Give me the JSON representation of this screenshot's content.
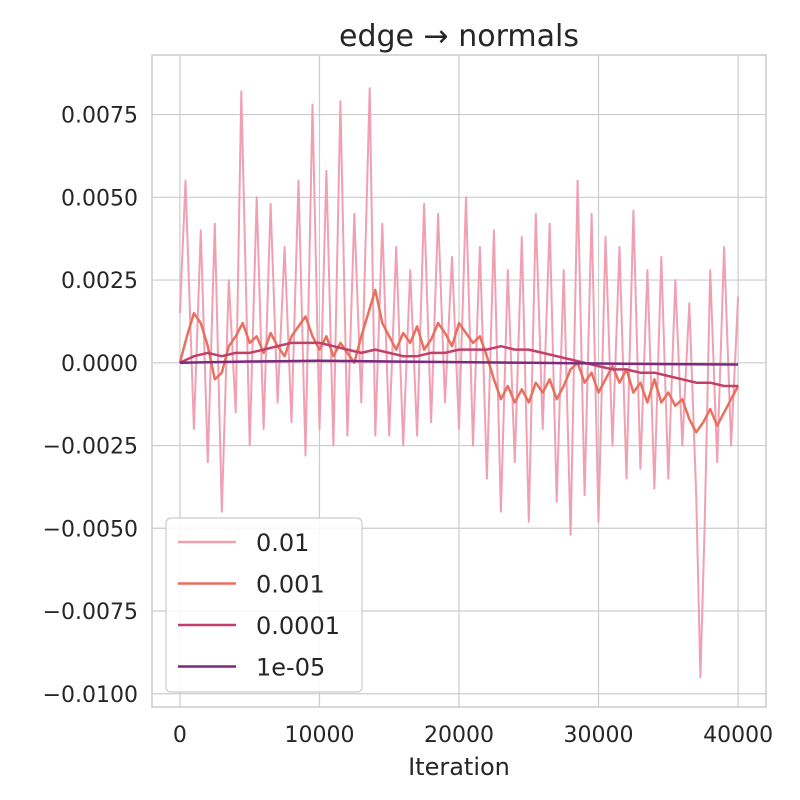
{
  "chart_data": {
    "type": "line",
    "title": "edge → normals",
    "xlabel": "Iteration",
    "ylabel": "",
    "xlim": [
      -2000,
      42000
    ],
    "ylim": [
      -0.0104,
      0.0093
    ],
    "x_ticks": [
      0,
      10000,
      20000,
      30000,
      40000
    ],
    "x_tick_labels": [
      "0",
      "10000",
      "20000",
      "30000",
      "40000"
    ],
    "y_ticks": [
      0.0075,
      0.005,
      0.0025,
      0.0,
      -0.0025,
      -0.005,
      -0.0075,
      -0.01
    ],
    "y_tick_labels": [
      "0.0075",
      "0.0050",
      "0.0025",
      "0.0000",
      "−0.0025",
      "−0.0050",
      "−0.0075",
      "−0.0100"
    ],
    "grid": true,
    "legend_position": "lower-left",
    "series": [
      {
        "name": "0.01",
        "color": "#f0a0b2",
        "x": [
          0,
          400,
          1000,
          1500,
          2000,
          2500,
          3000,
          3500,
          4000,
          4400,
          5000,
          5500,
          6000,
          6500,
          7000,
          7500,
          8000,
          8500,
          9000,
          9500,
          10000,
          10500,
          11000,
          11500,
          12000,
          12500,
          13000,
          13600,
          14000,
          14500,
          15000,
          15500,
          16000,
          16500,
          17000,
          17500,
          18000,
          18500,
          19000,
          19500,
          20000,
          20500,
          21000,
          21500,
          22000,
          22500,
          23000,
          23500,
          24000,
          24500,
          25000,
          25500,
          26000,
          26500,
          27000,
          27500,
          28000,
          28500,
          29000,
          29500,
          30000,
          30500,
          31000,
          31500,
          32000,
          32500,
          33000,
          33500,
          34000,
          34500,
          35000,
          35500,
          36000,
          36500,
          37000,
          37300,
          37600,
          38000,
          38500,
          39000,
          39500,
          40000
        ],
        "y": [
          0.0015,
          0.0055,
          -0.002,
          0.004,
          -0.003,
          0.0042,
          -0.0045,
          0.0025,
          -0.0015,
          0.0082,
          -0.0025,
          0.005,
          -0.002,
          0.0048,
          -0.0012,
          0.0035,
          -0.0018,
          0.0055,
          -0.0028,
          0.0078,
          -0.002,
          0.0058,
          -0.0025,
          0.0079,
          -0.0022,
          0.0045,
          -0.0012,
          0.0083,
          -0.0022,
          0.0042,
          -0.0022,
          0.0035,
          -0.0025,
          0.0028,
          -0.0022,
          0.0048,
          -0.0018,
          0.0045,
          -0.0012,
          0.0032,
          -0.002,
          0.005,
          -0.0025,
          0.0035,
          -0.0035,
          0.004,
          -0.0045,
          0.0028,
          -0.003,
          0.0038,
          -0.0048,
          0.0045,
          -0.002,
          0.0042,
          -0.0042,
          0.0028,
          -0.0052,
          0.0055,
          -0.004,
          0.0045,
          -0.0048,
          0.0038,
          -0.0025,
          0.0035,
          -0.0035,
          0.0046,
          -0.0032,
          0.0028,
          -0.0038,
          0.0032,
          -0.0035,
          0.0025,
          -0.0025,
          0.0018,
          -0.004,
          -0.0095,
          -0.005,
          0.0028,
          -0.003,
          0.0035,
          -0.0025,
          0.002
        ]
      },
      {
        "name": "0.001",
        "color": "#e8705f",
        "x": [
          0,
          500,
          1000,
          1500,
          2000,
          2500,
          3000,
          3500,
          4000,
          4500,
          5000,
          5500,
          6000,
          6500,
          7000,
          7500,
          8000,
          8500,
          9000,
          9500,
          10000,
          10500,
          11000,
          11500,
          12000,
          12500,
          13000,
          13500,
          14000,
          14500,
          15000,
          15500,
          16000,
          16500,
          17000,
          17500,
          18000,
          18500,
          19000,
          19500,
          20000,
          20500,
          21000,
          21500,
          22000,
          22500,
          23000,
          23500,
          24000,
          24500,
          25000,
          25500,
          26000,
          26500,
          27000,
          27500,
          28000,
          28500,
          29000,
          29500,
          30000,
          30500,
          31000,
          31500,
          32000,
          32500,
          33000,
          33500,
          34000,
          34500,
          35000,
          35500,
          36000,
          36500,
          37000,
          37500,
          38000,
          38500,
          39000,
          39500,
          40000
        ],
        "y": [
          0.0,
          0.0008,
          0.0015,
          0.0012,
          0.0005,
          -0.0005,
          -0.0003,
          0.0005,
          0.0008,
          0.0012,
          0.0006,
          0.0008,
          0.0003,
          0.0009,
          0.0005,
          0.0002,
          0.0008,
          0.0011,
          0.0014,
          0.0008,
          0.0004,
          0.0008,
          0.0002,
          0.0006,
          0.0003,
          0.0,
          0.0008,
          0.0015,
          0.0022,
          0.0012,
          0.0008,
          0.0004,
          0.0009,
          0.0006,
          0.0011,
          0.0004,
          0.0007,
          0.0012,
          0.0009,
          0.0005,
          0.0012,
          0.0009,
          0.0006,
          0.0008,
          0.0002,
          -0.0005,
          -0.0011,
          -0.0007,
          -0.0012,
          -0.0008,
          -0.0012,
          -0.0006,
          -0.0009,
          -0.0005,
          -0.0011,
          -0.0007,
          -0.0002,
          0.0,
          -0.0006,
          -0.0003,
          -0.0009,
          -0.0005,
          -0.0001,
          -0.0006,
          -0.0002,
          -0.0009,
          -0.0006,
          -0.0012,
          -0.0005,
          -0.0012,
          -0.0009,
          -0.0013,
          -0.0011,
          -0.0017,
          -0.0021,
          -0.0018,
          -0.0014,
          -0.0019,
          -0.0015,
          -0.0011,
          -0.0007
        ]
      },
      {
        "name": "0.0001",
        "color": "#c0406a",
        "x": [
          0,
          1000,
          2000,
          3000,
          4000,
          5000,
          6000,
          7000,
          8000,
          9000,
          10000,
          11000,
          12000,
          13000,
          14000,
          15000,
          16000,
          17000,
          18000,
          19000,
          20000,
          21000,
          22000,
          23000,
          24000,
          25000,
          26000,
          27000,
          28000,
          29000,
          30000,
          31000,
          32000,
          33000,
          34000,
          35000,
          36000,
          37000,
          38000,
          39000,
          40000
        ],
        "y": [
          0.0,
          0.0002,
          0.0003,
          0.0002,
          0.0003,
          0.0003,
          0.0004,
          0.0005,
          0.0006,
          0.0006,
          0.0006,
          0.0005,
          0.0004,
          0.0003,
          0.0004,
          0.0003,
          0.0002,
          0.0002,
          0.0003,
          0.0003,
          0.0004,
          0.0004,
          0.0004,
          0.0005,
          0.0004,
          0.0004,
          0.0003,
          0.0002,
          0.0001,
          0.0,
          -0.0001,
          -0.0002,
          -0.0002,
          -0.0003,
          -0.0003,
          -0.0004,
          -0.0005,
          -0.0006,
          -0.0006,
          -0.0007,
          -0.0007
        ]
      },
      {
        "name": "1e-05",
        "color": "#7b2a7e",
        "x": [
          0,
          5000,
          10000,
          15000,
          20000,
          25000,
          30000,
          35000,
          40000
        ],
        "y": [
          0.0,
          4e-05,
          6e-05,
          4e-05,
          2e-05,
          0.0,
          -2e-05,
          -4e-05,
          -5e-05
        ]
      }
    ]
  }
}
